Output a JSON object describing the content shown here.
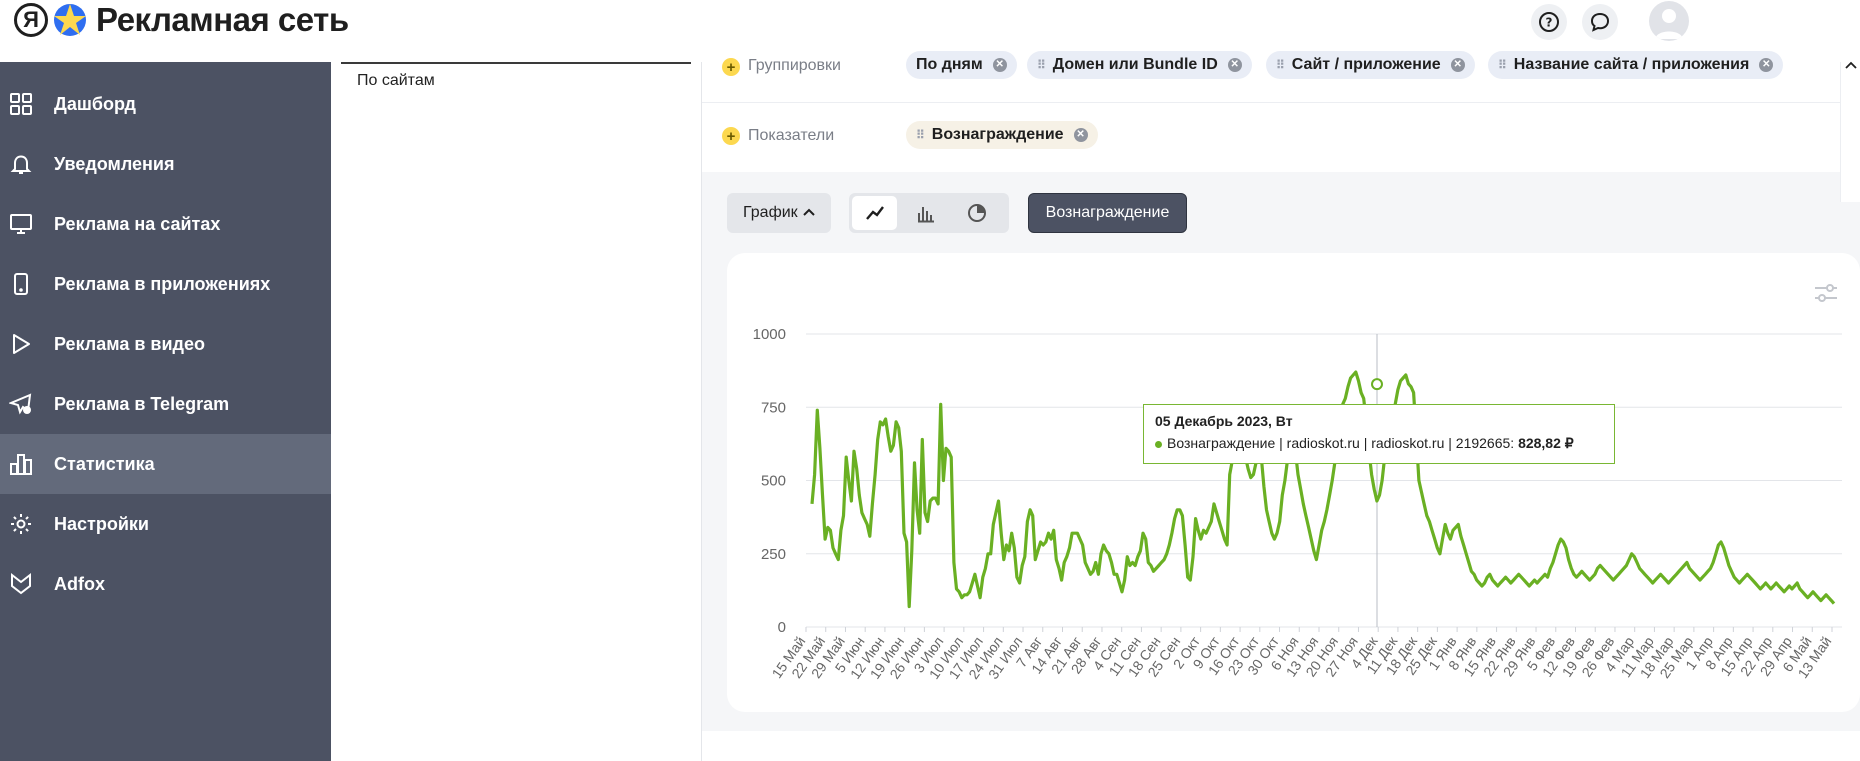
{
  "header": {
    "logo_letter": "Я",
    "title": "Рекламная сеть"
  },
  "sidebar": {
    "items": [
      {
        "label": "Дашборд",
        "icon": "dashboard-icon",
        "active": false
      },
      {
        "label": "Уведомления",
        "icon": "bell-icon",
        "active": false
      },
      {
        "label": "Реклама на сайтах",
        "icon": "monitor-icon",
        "active": false
      },
      {
        "label": "Реклама в приложениях",
        "icon": "phone-icon",
        "active": false
      },
      {
        "label": "Реклама в видео",
        "icon": "play-icon",
        "active": false
      },
      {
        "label": "Реклама в Telegram",
        "icon": "telegram-icon",
        "active": false
      },
      {
        "label": "Статистика",
        "icon": "stats-icon",
        "active": true
      },
      {
        "label": "Настройки",
        "icon": "gear-icon",
        "active": false
      },
      {
        "label": "Adfox",
        "icon": "adfox-icon",
        "active": false
      }
    ]
  },
  "left_panel": {
    "tab_label": "По сайтам"
  },
  "filters": {
    "groupings_label": "Группировки",
    "groupings": [
      "По дням",
      "Домен или Bundle ID",
      "Сайт / приложение",
      "Название сайта / приложения"
    ],
    "metrics_label": "Показатели",
    "metrics": [
      "Вознаграждение"
    ]
  },
  "toolbar": {
    "view_label": "График",
    "metric_button": "Вознаграждение"
  },
  "tooltip": {
    "date": "05 Декабрь 2023, Вт",
    "series": "Вознаграждение | radioskot.ru | radioskot.ru | 2192665:",
    "value": "828,82 ₽"
  },
  "colors": {
    "sidebar_bg": "#4c5263",
    "sidebar_active": "#636a7b",
    "line": "#6ab023",
    "accent_yellow": "#fcd84f"
  },
  "chart_data": {
    "type": "line",
    "title": "",
    "xlabel": "",
    "ylabel": "",
    "ylim": [
      0,
      1000
    ],
    "yticks": [
      0,
      250,
      500,
      750,
      1000
    ],
    "grid": true,
    "xtick_labels": [
      "15 Май",
      "22 Май",
      "29 Май",
      "5 Июн",
      "12 Июн",
      "19 Июн",
      "26 Июн",
      "3 Июл",
      "10 Июл",
      "17 Июл",
      "24 Июл",
      "31 Июл",
      "7 Авг",
      "14 Авг",
      "21 Авг",
      "28 Авг",
      "4 Сен",
      "11 Сен",
      "18 Сен",
      "25 Сен",
      "2 Окт",
      "9 Окт",
      "16 Окт",
      "23 Окт",
      "30 Окт",
      "6 Ноя",
      "13 Ноя",
      "20 Ноя",
      "27 Ноя",
      "4 Дек",
      "11 Дек",
      "18 Дек",
      "25 Дек",
      "1 Янв",
      "8 Янв",
      "15 Янв",
      "22 Янв",
      "29 Янв",
      "5 Фев",
      "12 Фев",
      "19 Фев",
      "26 Фев",
      "4 Мар",
      "11 Мар",
      "18 Мар",
      "25 Мар",
      "1 Апр",
      "8 Апр",
      "15 Апр",
      "22 Апр",
      "29 Апр",
      "6 Май",
      "13 Май"
    ],
    "series": [
      {
        "values": [
          420,
          520,
          740,
          610,
          450,
          300,
          340,
          330,
          270,
          250,
          230,
          330,
          380,
          580,
          500,
          430,
          600,
          540,
          450,
          390,
          370,
          350,
          310,
          420,
          520,
          640,
          700,
          690,
          710,
          650,
          600,
          620,
          700,
          680,
          600,
          320,
          290,
          70,
          260,
          560,
          400,
          320,
          640,
          390,
          360,
          430,
          440,
          440,
          420,
          760,
          500,
          610,
          600,
          580,
          220,
          130,
          120,
          100,
          110,
          110,
          120,
          150,
          180,
          140,
          100,
          170,
          200,
          250,
          250,
          350,
          390,
          430,
          320,
          230,
          280,
          260,
          320,
          270,
          170,
          150,
          210,
          240,
          360,
          400,
          380,
          230,
          260,
          290,
          280,
          290,
          320,
          300,
          330,
          230,
          200,
          160,
          220,
          240,
          270,
          320,
          320,
          320,
          300,
          280,
          220,
          200,
          180,
          190,
          220,
          180,
          250,
          280,
          260,
          250,
          220,
          180,
          180,
          150,
          120,
          160,
          240,
          210,
          220,
          210,
          240,
          260,
          320,
          300,
          220,
          210,
          190,
          200,
          210,
          220,
          230,
          250,
          280,
          320,
          370,
          400,
          400,
          380,
          280,
          170,
          160,
          240,
          370,
          330,
          300,
          330,
          320,
          340,
          360,
          420,
          390,
          360,
          330,
          300,
          280,
          520,
          570,
          600,
          640,
          700,
          620,
          580,
          540,
          510,
          520,
          560,
          600,
          580,
          480,
          400,
          360,
          320,
          300,
          320,
          360,
          450,
          500,
          570,
          640,
          700,
          600,
          520,
          470,
          420,
          380,
          340,
          300,
          260,
          230,
          280,
          330,
          360,
          400,
          450,
          500,
          560,
          620,
          700,
          760,
          780,
          820,
          850,
          860,
          870,
          840,
          800,
          780,
          700,
          600,
          520,
          470,
          430,
          450,
          500,
          580,
          640,
          700,
          720,
          760,
          810,
          840,
          850,
          860,
          830,
          820,
          800,
          650,
          500,
          460,
          420,
          380,
          360,
          330,
          300,
          270,
          250,
          300,
          350,
          320,
          300,
          330,
          340,
          350,
          310,
          280,
          250,
          220,
          190,
          180,
          160,
          150,
          140,
          150,
          170,
          180,
          160,
          150,
          140,
          150,
          160,
          170,
          160,
          150,
          160,
          170,
          180,
          170,
          160,
          150,
          140,
          150,
          160,
          150,
          160,
          170,
          180,
          170,
          200,
          220,
          250,
          280,
          300,
          290,
          270,
          230,
          200,
          180,
          170,
          180,
          190,
          180,
          170,
          160,
          170,
          180,
          200,
          210,
          200,
          190,
          180,
          170,
          160,
          170,
          180,
          190,
          200,
          210,
          230,
          250,
          240,
          220,
          200,
          190,
          180,
          170,
          160,
          150,
          160,
          170,
          180,
          170,
          160,
          150,
          160,
          170,
          180,
          190,
          200,
          210,
          220,
          200,
          190,
          180,
          170,
          160,
          170,
          180,
          190,
          200,
          220,
          250,
          280,
          290,
          270,
          240,
          210,
          190,
          170,
          160,
          150,
          160,
          170,
          180,
          170,
          160,
          150,
          140,
          130,
          140,
          150,
          140,
          130,
          140,
          150,
          140,
          130,
          120,
          130,
          140,
          130,
          140,
          150,
          130,
          120,
          110,
          100,
          110,
          120,
          110,
          100,
          90,
          100,
          110,
          100,
          90,
          80
        ]
      }
    ]
  }
}
